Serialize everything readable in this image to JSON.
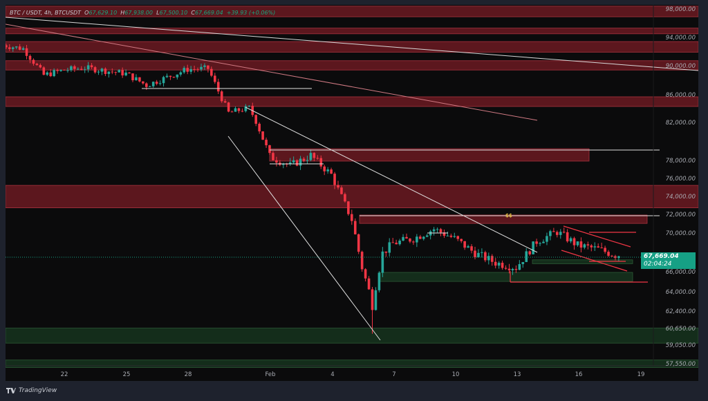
{
  "header": {
    "symbol": "BTC / USDT, 4h, BTCUSDT",
    "open_label": "O",
    "open": "67,629.10",
    "high_label": "H",
    "high": "67,938.00",
    "low_label": "L",
    "low": "67,500.10",
    "close_label": "C",
    "close": "67,669.04",
    "change": "+39.93 (+0.06%)"
  },
  "last_price": {
    "price": "67,669.04",
    "countdown": "02:04:24",
    "color": "#16a085"
  },
  "annotation": "$$",
  "brand": "TradingView",
  "colors": {
    "up": "#26a69a",
    "down": "#f23645",
    "resistance_zone": "#6b1a22",
    "support_zone": "#16341f"
  },
  "chart_data": {
    "type": "candlestick",
    "title": "BTC / USDT, 4h",
    "y_ticks": [
      "98,000.00",
      "94,000.00",
      "90,000.00",
      "86,000.00",
      "82,000.00",
      "78,000.00",
      "76,000.00",
      "74,000.00",
      "72,000.00",
      "70,000.00",
      "66,000.00",
      "64,000.00",
      "62,400.00",
      "60,650.00",
      "59,050.00",
      "57,550.00"
    ],
    "x_ticks": [
      "22",
      "25",
      "28",
      "Feb",
      "4",
      "7",
      "10",
      "13",
      "16",
      "19"
    ],
    "approx_close_path": [
      {
        "date": "Jan 19",
        "close": 93000
      },
      {
        "date": "Jan 20",
        "close": 92500
      },
      {
        "date": "Jan 21",
        "close": 88800
      },
      {
        "date": "Jan 22",
        "close": 89500
      },
      {
        "date": "Jan 23",
        "close": 89800
      },
      {
        "date": "Jan 24",
        "close": 89400
      },
      {
        "date": "Jan 25",
        "close": 89000
      },
      {
        "date": "Jan 26",
        "close": 87400
      },
      {
        "date": "Jan 27",
        "close": 88500
      },
      {
        "date": "Jan 28",
        "close": 89600
      },
      {
        "date": "Jan 29",
        "close": 89700
      },
      {
        "date": "Jan 30",
        "close": 83500
      },
      {
        "date": "Jan 31",
        "close": 84200
      },
      {
        "date": "Feb 1",
        "close": 78500
      },
      {
        "date": "Feb 2",
        "close": 77500
      },
      {
        "date": "Feb 3",
        "close": 78600
      },
      {
        "date": "Feb 4",
        "close": 76500
      },
      {
        "date": "Feb 5",
        "close": 71500
      },
      {
        "date": "Feb 5.5",
        "close": 66500
      },
      {
        "date": "Feb 6",
        "close": 63000
      },
      {
        "date": "Feb 6.5",
        "close": 68000
      },
      {
        "date": "Feb 7",
        "close": 69000
      },
      {
        "date": "Feb 8",
        "close": 69500
      },
      {
        "date": "Feb 9",
        "close": 70500
      },
      {
        "date": "Feb 10",
        "close": 69500
      },
      {
        "date": "Feb 11",
        "close": 68000
      },
      {
        "date": "Feb 12",
        "close": 67000
      },
      {
        "date": "Feb 13",
        "close": 66500
      },
      {
        "date": "Feb 14",
        "close": 69200
      },
      {
        "date": "Feb 15",
        "close": 70200
      },
      {
        "date": "Feb 16",
        "close": 68800
      },
      {
        "date": "Feb 17",
        "close": 68400
      },
      {
        "date": "Feb 18",
        "close": 67669.04
      }
    ],
    "zones": [
      {
        "type": "resistance",
        "low": 97000,
        "high": 98500
      },
      {
        "type": "resistance",
        "low": 94600,
        "high": 95400
      },
      {
        "type": "resistance",
        "low": 92000,
        "high": 93500
      },
      {
        "type": "resistance",
        "low": 89500,
        "high": 90800
      },
      {
        "type": "resistance",
        "low": 84400,
        "high": 85800
      },
      {
        "type": "resistance",
        "low": 78000,
        "high": 79300
      },
      {
        "type": "resistance",
        "low": 72800,
        "high": 75300
      },
      {
        "type": "resistance",
        "low": 71100,
        "high": 72000
      },
      {
        "type": "support",
        "low": 66900,
        "high": 67300
      },
      {
        "type": "support",
        "low": 65100,
        "high": 66000
      },
      {
        "type": "support",
        "low": 59300,
        "high": 60750
      },
      {
        "type": "support",
        "low": 57300,
        "high": 57900
      }
    ]
  }
}
